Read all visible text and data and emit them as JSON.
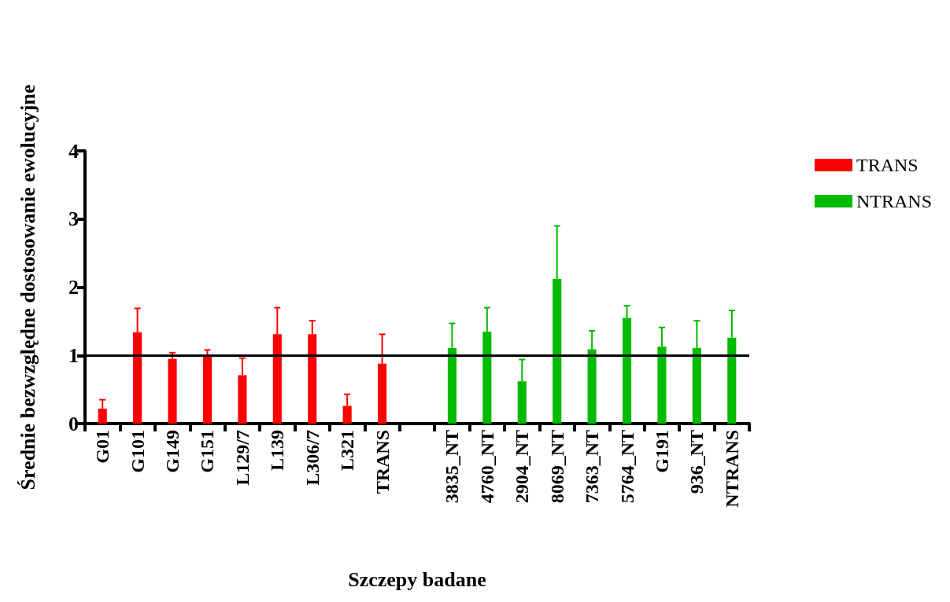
{
  "chart_data": {
    "type": "bar",
    "xlabel": "Szczepy badane",
    "ylabel": "Średnie bezwzględne dostosowanie ewolucyjne",
    "categories": [
      "G01",
      "G101",
      "G149",
      "G151",
      "L129/7",
      "L139",
      "L306/7",
      "L321",
      "TRANS",
      null,
      "3835_NT",
      "4760_NT",
      "2904_NT",
      "8069_NT",
      "7363_NT",
      "5764_NT",
      "G191",
      "936_NT",
      "NTRANS"
    ],
    "series": [
      {
        "name": "TRANS",
        "color": "#ff0000",
        "values": [
          0.22,
          1.34,
          0.95,
          0.99,
          0.71,
          1.31,
          1.31,
          0.26,
          0.88,
          null,
          null,
          null,
          null,
          null,
          null,
          null,
          null,
          null,
          null
        ],
        "errors": [
          0.13,
          0.35,
          0.09,
          0.09,
          0.25,
          0.39,
          0.2,
          0.17,
          0.43,
          null,
          null,
          null,
          null,
          null,
          null,
          null,
          null,
          null,
          null
        ]
      },
      {
        "name": "NTRANS",
        "color": "#00bb00",
        "values": [
          null,
          null,
          null,
          null,
          null,
          null,
          null,
          null,
          null,
          null,
          1.11,
          1.35,
          0.62,
          2.12,
          1.09,
          1.55,
          1.13,
          1.11,
          1.26
        ],
        "errors": [
          null,
          null,
          null,
          null,
          null,
          null,
          null,
          null,
          null,
          null,
          0.36,
          0.35,
          0.32,
          0.78,
          0.27,
          0.18,
          0.28,
          0.4,
          0.4
        ]
      }
    ],
    "ylim": [
      0,
      4
    ],
    "yticks": [
      0,
      1,
      2,
      3,
      4
    ],
    "grid": false,
    "legend": "top right",
    "ref_lines": [
      {
        "axis": "y",
        "value": 1,
        "label": null,
        "color": "#000000"
      }
    ]
  }
}
